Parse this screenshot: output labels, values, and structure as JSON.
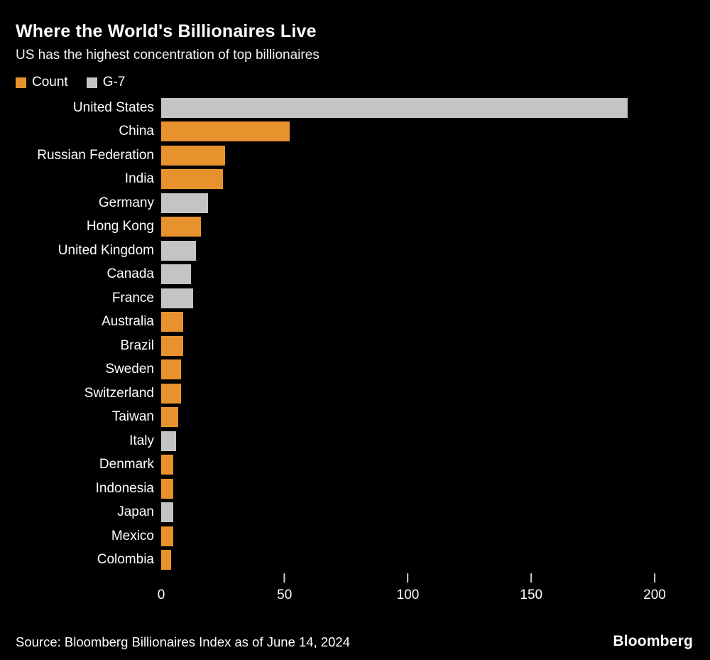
{
  "header": {
    "title": "Where the World's Billionaires Live",
    "subtitle": "US has the highest concentration of top billionaires"
  },
  "legend": [
    {
      "label": "Count",
      "color": "#E8922E"
    },
    {
      "label": "G-7",
      "color": "#C4C4C4"
    }
  ],
  "chart_data": {
    "type": "bar",
    "orientation": "horizontal",
    "title": "Where the World's Billionaires Live",
    "subtitle": "US has the highest concentration of top billionaires",
    "legend_entries": [
      "Count",
      "G-7"
    ],
    "legend_position": "top-left",
    "grid": false,
    "xlim": [
      0,
      200
    ],
    "xticks": [
      0,
      50,
      100,
      150,
      200
    ],
    "colors": {
      "Count": "#E8922E",
      "G-7": "#C4C4C4"
    },
    "background": "#000000",
    "rows": [
      {
        "label": "United States",
        "value": 189,
        "group": "G-7"
      },
      {
        "label": "China",
        "value": 52,
        "group": "Count"
      },
      {
        "label": "Russian Federation",
        "value": 26,
        "group": "Count"
      },
      {
        "label": "India",
        "value": 25,
        "group": "Count"
      },
      {
        "label": "Germany",
        "value": 19,
        "group": "G-7"
      },
      {
        "label": "Hong Kong",
        "value": 16,
        "group": "Count"
      },
      {
        "label": "United Kingdom",
        "value": 14,
        "group": "G-7"
      },
      {
        "label": "Canada",
        "value": 12,
        "group": "G-7"
      },
      {
        "label": "France",
        "value": 13,
        "group": "G-7"
      },
      {
        "label": "Australia",
        "value": 9,
        "group": "Count"
      },
      {
        "label": "Brazil",
        "value": 9,
        "group": "Count"
      },
      {
        "label": "Sweden",
        "value": 8,
        "group": "Count"
      },
      {
        "label": "Switzerland",
        "value": 8,
        "group": "Count"
      },
      {
        "label": "Taiwan",
        "value": 7,
        "group": "Count"
      },
      {
        "label": "Italy",
        "value": 6,
        "group": "G-7"
      },
      {
        "label": "Denmark",
        "value": 5,
        "group": "Count"
      },
      {
        "label": "Indonesia",
        "value": 5,
        "group": "Count"
      },
      {
        "label": "Japan",
        "value": 5,
        "group": "G-7"
      },
      {
        "label": "Mexico",
        "value": 5,
        "group": "Count"
      },
      {
        "label": "Colombia",
        "value": 4,
        "group": "Count"
      }
    ]
  },
  "footer": {
    "source": "Source: Bloomberg Billionaires Index as of June 14, 2024",
    "brand": "Bloomberg"
  }
}
